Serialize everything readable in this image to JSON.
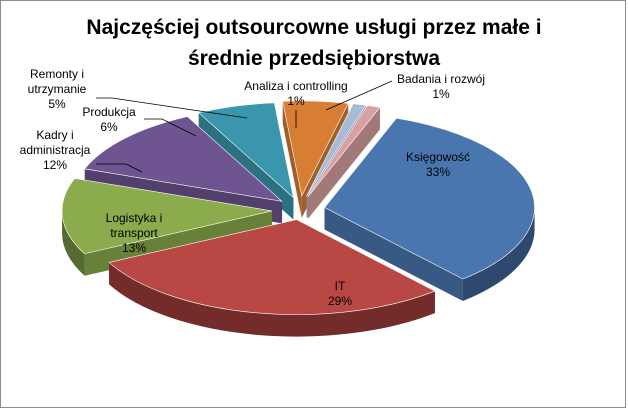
{
  "chart_data": {
    "type": "pie",
    "title_lines": [
      "Najczęściej outsourcowne usługi przez małe i",
      "średnie przedsiębiorstwa"
    ],
    "slices": [
      {
        "key": "ksiegowosc",
        "label_lines": [
          "Księgowość"
        ],
        "value": 33,
        "value_label": "33%",
        "color": "#4a76b0"
      },
      {
        "key": "it",
        "label_lines": [
          "IT"
        ],
        "value": 29,
        "value_label": "29%",
        "color": "#b94744"
      },
      {
        "key": "logistyka",
        "label_lines": [
          "Logistyka i",
          "transport"
        ],
        "value": 13,
        "value_label": "13%",
        "color": "#8cab4c"
      },
      {
        "key": "kadry",
        "label_lines": [
          "Kadry i",
          "administracja"
        ],
        "value": 12,
        "value_label": "12%",
        "color": "#6e5490"
      },
      {
        "key": "produkcja",
        "label_lines": [
          "Produkcja"
        ],
        "value": 6,
        "value_label": "6%",
        "color": "#3996ad"
      },
      {
        "key": "remonty",
        "label_lines": [
          "Remonty i",
          "utrzymanie"
        ],
        "value": 5,
        "value_label": "5%",
        "color": "#d87d34"
      },
      {
        "key": "analiza",
        "label_lines": [
          "Analiza i controlling"
        ],
        "value": 1,
        "value_label": "1%",
        "color": "#a7bad6"
      },
      {
        "key": "badania",
        "label_lines": [
          "Badania i rozwój"
        ],
        "value": 1,
        "value_label": "1%",
        "color": "#d8a0a0"
      }
    ]
  }
}
